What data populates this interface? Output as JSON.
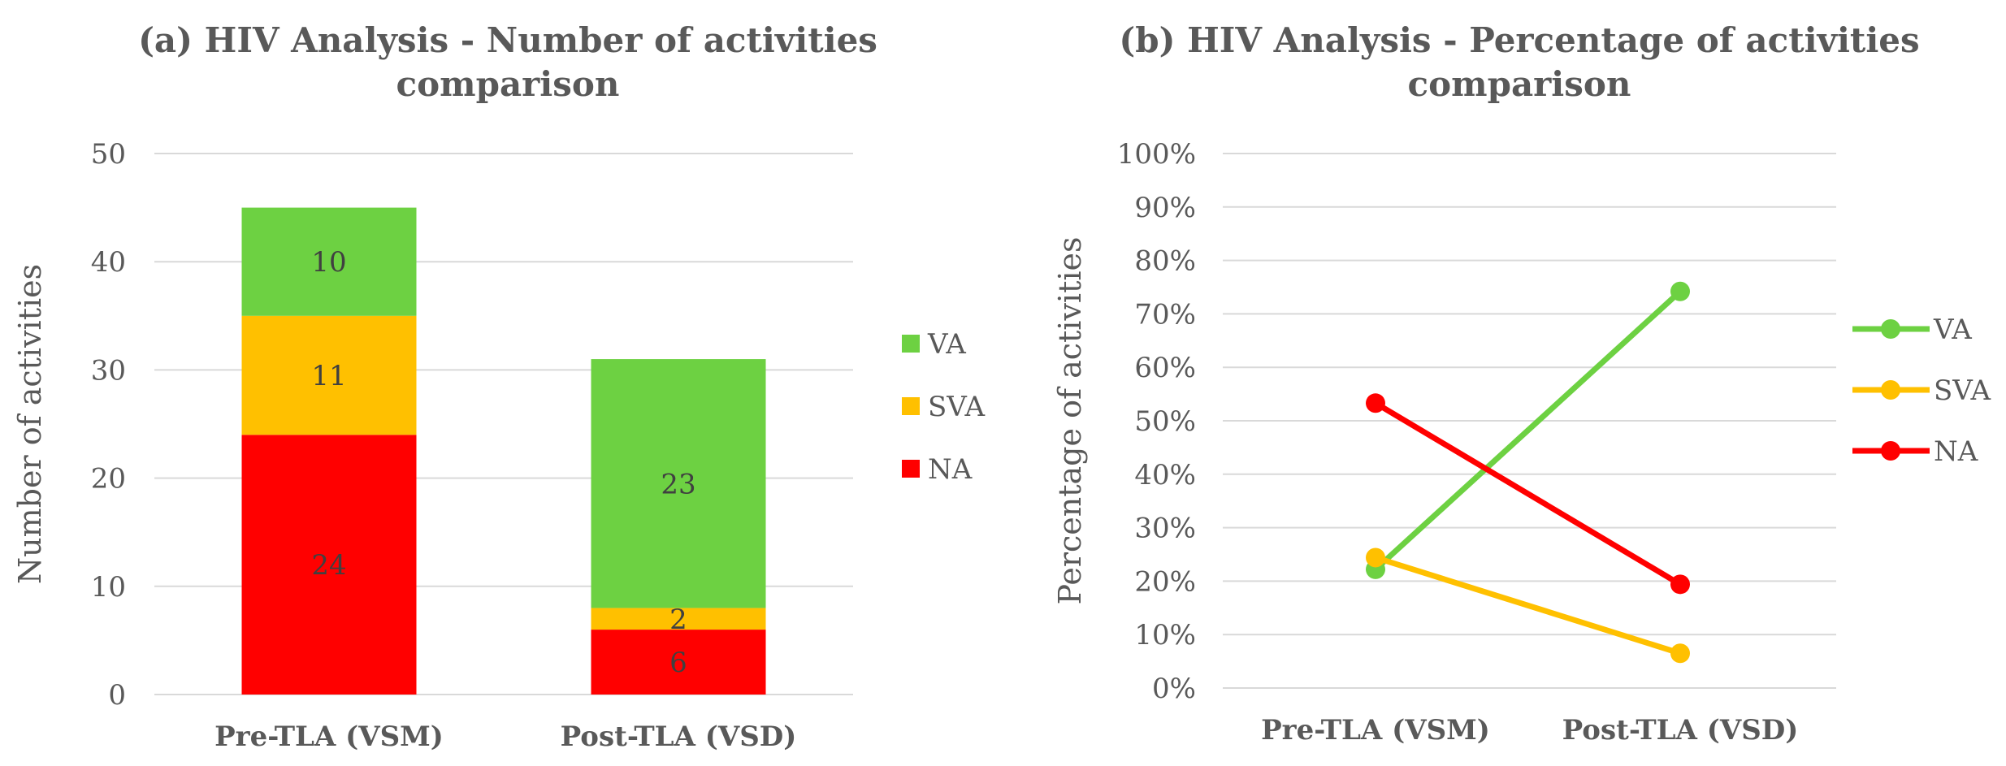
{
  "chart_data": [
    {
      "type": "bar",
      "stacked": true,
      "title": "(a) HIV Analysis - Number of activities comparison",
      "title_lines": [
        "(a) HIV Analysis - Number of activities",
        "comparison"
      ],
      "xlabel": "",
      "ylabel": "Number of activities",
      "categories": [
        "Pre-TLA (VSM)",
        "Post-TLA (VSD)"
      ],
      "ylim": [
        0,
        50
      ],
      "yticks": [
        0,
        10,
        20,
        30,
        40,
        50
      ],
      "grid": true,
      "legend_position": "right",
      "legend_order": [
        "VA",
        "SVA",
        "NA"
      ],
      "series": [
        {
          "name": "NA",
          "color": "#ff0000",
          "values": [
            24,
            6
          ]
        },
        {
          "name": "SVA",
          "color": "#ffc000",
          "values": [
            11,
            2
          ]
        },
        {
          "name": "VA",
          "color": "#6dd142",
          "values": [
            10,
            23
          ]
        }
      ]
    },
    {
      "type": "line",
      "title": "(b) HIV Analysis - Percentage of activities comparison",
      "title_lines": [
        "(b) HIV Analysis - Percentage of activities",
        "comparison"
      ],
      "xlabel": "",
      "ylabel": "Percentage of activities",
      "categories": [
        "Pre-TLA (VSM)",
        "Post-TLA (VSD)"
      ],
      "ylim": [
        0,
        100
      ],
      "yticks": [
        0,
        10,
        20,
        30,
        40,
        50,
        60,
        70,
        80,
        90,
        100
      ],
      "ytick_format": "percent",
      "grid": true,
      "legend_position": "right",
      "legend_order": [
        "VA",
        "SVA",
        "NA"
      ],
      "series": [
        {
          "name": "VA",
          "color": "#6dd142",
          "values": [
            22.2,
            74.2
          ]
        },
        {
          "name": "SVA",
          "color": "#ffc000",
          "values": [
            24.4,
            6.5
          ]
        },
        {
          "name": "NA",
          "color": "#ff0000",
          "values": [
            53.3,
            19.4
          ]
        }
      ]
    }
  ]
}
